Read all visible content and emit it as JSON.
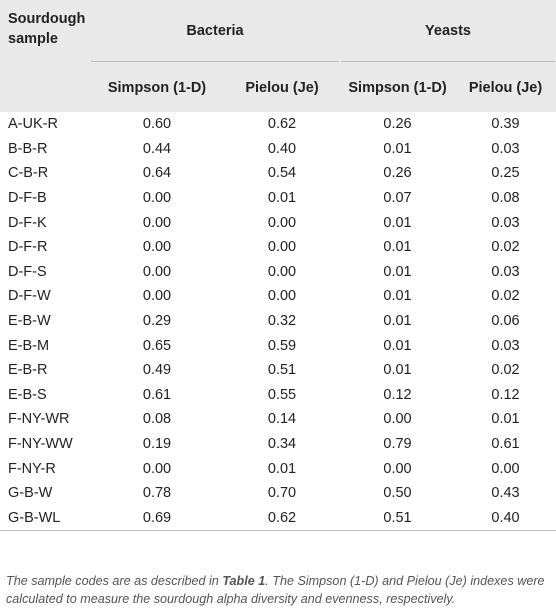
{
  "header": {
    "sample_col": "Sourdough sample",
    "group_bacteria": "Bacteria",
    "group_yeasts": "Yeasts",
    "sub_simpson_b": "Simpson (1-D)",
    "sub_pielou_b": "Pielou (Je)",
    "sub_simpson_y": "Simpson (1-D)",
    "sub_pielou_y": "Pielou (Je)"
  },
  "rows": [
    [
      "A-UK-R",
      "0.60",
      "0.62",
      "0.26",
      "0.39"
    ],
    [
      "B-B-R",
      "0.44",
      "0.40",
      "0.01",
      "0.03"
    ],
    [
      "C-B-R",
      "0.64",
      "0.54",
      "0.26",
      "0.25"
    ],
    [
      "D-F-B",
      "0.00",
      "0.01",
      "0.07",
      "0.08"
    ],
    [
      "D-F-K",
      "0.00",
      "0.00",
      "0.01",
      "0.03"
    ],
    [
      "D-F-R",
      "0.00",
      "0.00",
      "0.01",
      "0.02"
    ],
    [
      "D-F-S",
      "0.00",
      "0.00",
      "0.01",
      "0.03"
    ],
    [
      "D-F-W",
      "0.00",
      "0.00",
      "0.01",
      "0.02"
    ],
    [
      "E-B-W",
      "0.29",
      "0.32",
      "0.01",
      "0.06"
    ],
    [
      "E-B-M",
      "0.65",
      "0.59",
      "0.01",
      "0.03"
    ],
    [
      "E-B-R",
      "0.49",
      "0.51",
      "0.01",
      "0.02"
    ],
    [
      "E-B-S",
      "0.61",
      "0.55",
      "0.12",
      "0.12"
    ],
    [
      "F-NY-WR",
      "0.08",
      "0.14",
      "0.00",
      "0.01"
    ],
    [
      "F-NY-WW",
      "0.19",
      "0.34",
      "0.79",
      "0.61"
    ],
    [
      "F-NY-R",
      "0.00",
      "0.01",
      "0.00",
      "0.00"
    ],
    [
      "G-B-W",
      "0.78",
      "0.70",
      "0.50",
      "0.43"
    ],
    [
      "G-B-WL",
      "0.69",
      "0.62",
      "0.51",
      "0.40"
    ]
  ],
  "footnote": {
    "part1": "The sample codes are as described in ",
    "ref": "Table 1",
    "part2": ". The Simpson (1-D) and Pielou (Je) indexes were calculated to measure the sourdough alpha diversity and evenness, respectively."
  }
}
